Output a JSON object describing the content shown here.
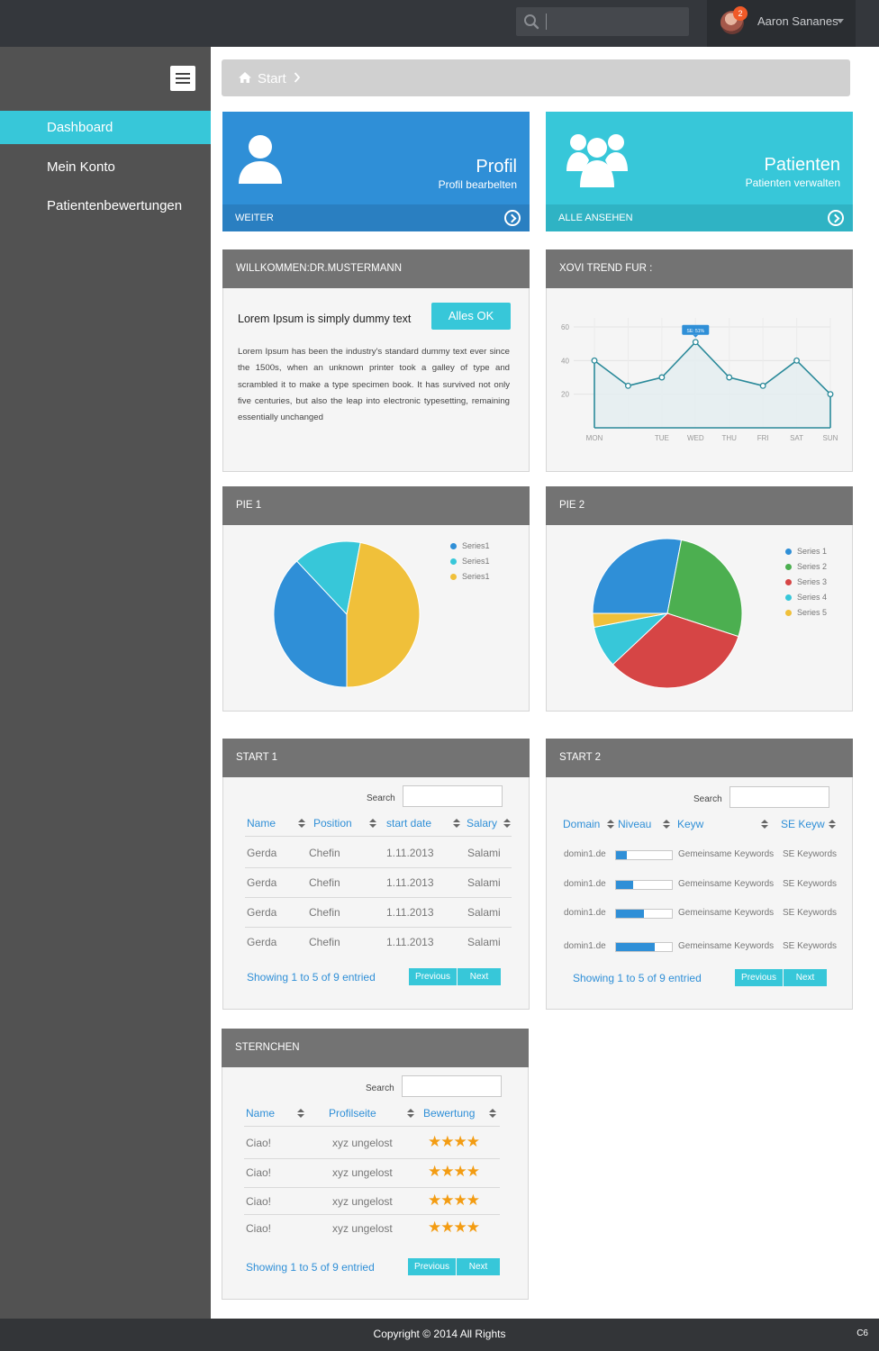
{
  "header": {
    "user_name": "Aaron Sananes",
    "notifications": "2",
    "search_value": ""
  },
  "sidebar": {
    "items": [
      {
        "label": "Dashboard"
      },
      {
        "label": "Mein Konto"
      },
      {
        "label": "Patientenbewertungen"
      }
    ]
  },
  "breadcrumb": {
    "label": "Start"
  },
  "tiles": [
    {
      "title": "Profil",
      "subtitle": "Profil bearbelten",
      "footer": "WEITER",
      "color": "#2f8fd7",
      "footer_color": "#2a7fc1"
    },
    {
      "title": "Patienten",
      "subtitle": "Patienten verwalten",
      "footer": "ALLE ANSEHEN",
      "color": "#37c7d9",
      "footer_color": "#2fb3c4"
    }
  ],
  "welcome": {
    "heading": "WILLKOMMEN:DR.MUSTERMANN",
    "title": "Lorem Ipsum is simply dummy text",
    "button": "Alles OK",
    "text": "Lorem Ipsum has been the industry's standard dummy text ever since the 1500s, when an unknown printer took a galley of type and scrambled it to make a type specimen book. It has survived not only five centuries, but also the leap into electronic typesetting, remaining essentially unchanged"
  },
  "trend": {
    "heading": "XOVI TREND FUR :",
    "tooltip": "SE: 51%"
  },
  "pie1": {
    "heading": "PIE 1"
  },
  "pie2": {
    "heading": "PIE 2"
  },
  "chart_data": [
    {
      "type": "line",
      "categories": [
        "MON",
        "TUE",
        "WED",
        "THU",
        "FRI",
        "SAT",
        "SUN"
      ],
      "series": [
        {
          "values": [
            40,
            25,
            30,
            51,
            30,
            25,
            40,
            20
          ]
        }
      ],
      "x": [
        "MON",
        "",
        "TUE",
        "WED",
        "THU",
        "FRI",
        "SAT",
        "SUN"
      ],
      "yticks": [
        20,
        40,
        60
      ],
      "ylim": [
        0,
        60
      ],
      "grid": true,
      "color": "#2b8a9a"
    },
    {
      "type": "pie",
      "series": [
        {
          "name": "Series1",
          "value": 38,
          "color": "#2f8fd7"
        },
        {
          "name": "Series1",
          "value": 15,
          "color": "#37c7d9"
        },
        {
          "name": "Series1",
          "value": 47,
          "color": "#f0c03a"
        }
      ],
      "legend": "top-right"
    },
    {
      "type": "pie",
      "series": [
        {
          "name": "Series 1",
          "value": 28,
          "color": "#2f8fd7"
        },
        {
          "name": "Series 2",
          "value": 27,
          "color": "#4caf50"
        },
        {
          "name": "Series 3",
          "value": 33,
          "color": "#d64545"
        },
        {
          "name": "Series 4",
          "value": 9,
          "color": "#37c7d9"
        },
        {
          "name": "Series 5",
          "value": 3,
          "color": "#f0c03a"
        }
      ],
      "legend": "top-right"
    }
  ],
  "table1": {
    "heading": "START 1",
    "search_label": "Search",
    "columns": [
      "Name",
      "Position",
      "start date",
      "Salary"
    ],
    "rows": [
      [
        "Gerda",
        "Chefin",
        "1.11.2013",
        "Salami"
      ],
      [
        "Gerda",
        "Chefin",
        "1.11.2013",
        "Salami"
      ],
      [
        "Gerda",
        "Chefin",
        "1.11.2013",
        "Salami"
      ],
      [
        "Gerda",
        "Chefin",
        "1.11.2013",
        "Salami"
      ]
    ],
    "showing": "Showing 1 to 5 of 9 entried",
    "prev": "Previous",
    "next": "Next"
  },
  "table2": {
    "heading": "START 2",
    "search_label": "Search",
    "columns": [
      "Domain",
      "Niveau",
      "Keyw",
      "SE Keyw"
    ],
    "rows": [
      {
        "domain": "domin1.de",
        "level": 0.2,
        "keyw": "Gemeinsame Keywords",
        "se": "SE Keywords"
      },
      {
        "domain": "domin1.de",
        "level": 0.3,
        "keyw": "Gemeinsame Keywords",
        "se": "SE Keywords"
      },
      {
        "domain": "domin1.de",
        "level": 0.5,
        "keyw": "Gemeinsame Keywords",
        "se": "SE Keywords"
      },
      {
        "domain": "domin1.de",
        "level": 0.7,
        "keyw": "Gemeinsame Keywords",
        "se": "SE Keywords"
      }
    ],
    "showing": "Showing 1 to 5 of 9 entried",
    "prev": "Previous",
    "next": "Next"
  },
  "table3": {
    "heading": "STERNCHEN",
    "search_label": "Search",
    "columns": [
      "Name",
      "Profilseite",
      "Bewertung"
    ],
    "rows": [
      {
        "name": "Ciao!",
        "profile": "xyz ungelost",
        "stars": 4
      },
      {
        "name": "Ciao!",
        "profile": "xyz ungelost",
        "stars": 4
      },
      {
        "name": "Ciao!",
        "profile": "xyz ungelost",
        "stars": 4
      },
      {
        "name": "Ciao!",
        "profile": "xyz ungelost",
        "stars": 4
      }
    ],
    "showing": "Showing 1 to 5 of 9 entried",
    "prev": "Previous",
    "next": "Next"
  },
  "footer": {
    "copyright": "Copyright © 2014  All Rights",
    "code": "C6"
  }
}
